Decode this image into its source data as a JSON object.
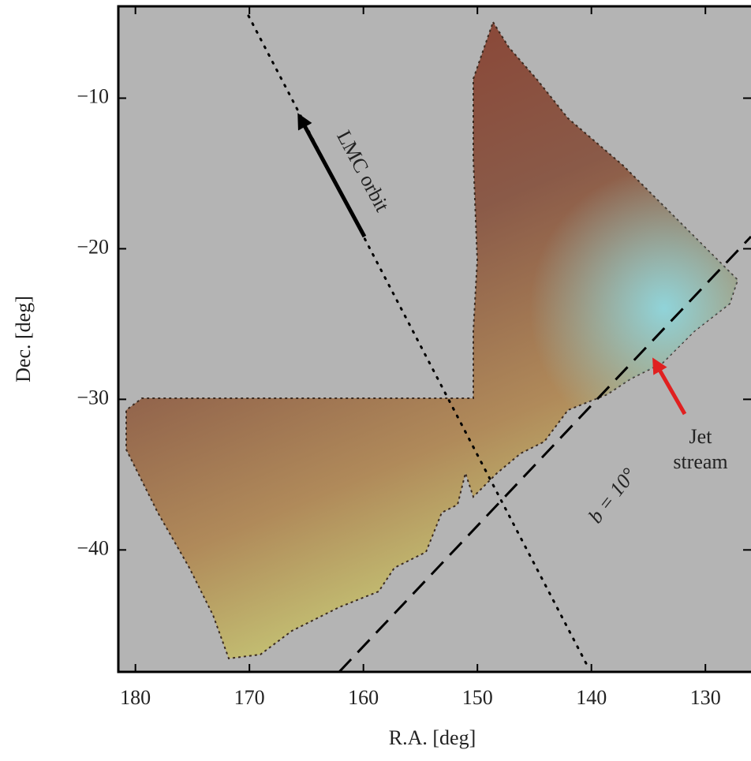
{
  "chart_data": {
    "type": "sky-map",
    "x_label": "R.A. [deg]",
    "y_label": "Dec. [deg]",
    "xlim": [
      181.5,
      126
    ],
    "ylim": [
      -48.1,
      -3.9
    ],
    "xticks": [
      180,
      170,
      160,
      150,
      140,
      130
    ],
    "yticks": [
      {
        "value": -10,
        "label": "−10"
      },
      {
        "value": -20,
        "label": "−20"
      },
      {
        "value": -30,
        "label": "−30"
      },
      {
        "value": -40,
        "label": "−40"
      }
    ],
    "background": "#b4b4b4",
    "annotations": {
      "lmc": "LMC orbit",
      "jet": [
        "Jet",
        "stream"
      ],
      "plane": "b = 10°"
    }
  }
}
